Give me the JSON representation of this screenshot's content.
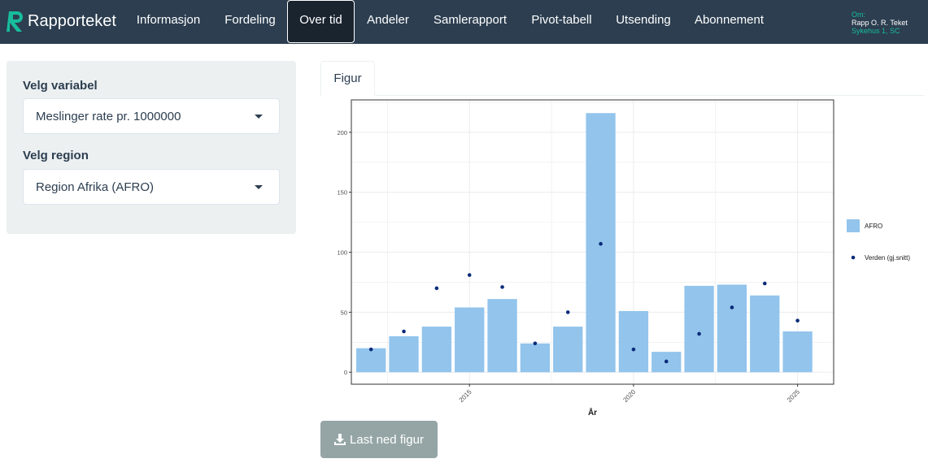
{
  "app": {
    "brand": "Rapporteket"
  },
  "nav": {
    "tabs": [
      {
        "label": "Informasjon"
      },
      {
        "label": "Fordeling"
      },
      {
        "label": "Over tid",
        "active": true
      },
      {
        "label": "Andeler"
      },
      {
        "label": "Samlerapport"
      },
      {
        "label": "Pivot-tabell"
      },
      {
        "label": "Utsending"
      },
      {
        "label": "Abonnement"
      }
    ]
  },
  "user": {
    "role_label": "Om:",
    "name": "Rapp O. R. Teket",
    "unit": "Sykehus 1, SC"
  },
  "sidebar": {
    "variable_label": "Velg variabel",
    "variable_value": "Meslinger rate pr. 1000000",
    "region_label": "Velg region",
    "region_value": "Region Afrika (AFRO)"
  },
  "main": {
    "tab_label": "Figur",
    "download_label": "Last ned figur"
  },
  "icons": {
    "download": "download-icon",
    "dropdown": "chevron-down-icon",
    "logo": "rapporteket-logo"
  },
  "colors": {
    "navbar": "#2c3e50",
    "accent": "#18bc9c",
    "bar_fill": "#92c4ec",
    "point": "#0b2b7a",
    "button": "#95a5a6"
  },
  "chart_data": {
    "type": "bar",
    "xlabel": "År",
    "ylabel": "",
    "xlim": [
      2011.4,
      2026.1
    ],
    "ylim": [
      -10,
      227
    ],
    "x_ticks": [
      2015,
      2020,
      2025
    ],
    "y_ticks": [
      0,
      50,
      100,
      150,
      200
    ],
    "grid": true,
    "legend_position": "right",
    "series": [
      {
        "name": "AFRO",
        "kind": "bar",
        "x": [
          2012,
          2013,
          2014,
          2015,
          2016,
          2017,
          2018,
          2019,
          2020,
          2021,
          2022,
          2023,
          2024,
          2025
        ],
        "values": [
          20,
          30,
          38,
          54,
          61,
          24,
          38,
          216,
          51,
          17,
          72,
          73,
          64,
          34
        ]
      },
      {
        "name": "Verden (gj.snitt)",
        "kind": "point",
        "x": [
          2012,
          2013,
          2014,
          2015,
          2016,
          2017,
          2018,
          2019,
          2020,
          2021,
          2022,
          2023,
          2024,
          2025
        ],
        "values": [
          19,
          34,
          70,
          81,
          71,
          24,
          50,
          107,
          19,
          9,
          32,
          54,
          74,
          43
        ]
      }
    ]
  }
}
